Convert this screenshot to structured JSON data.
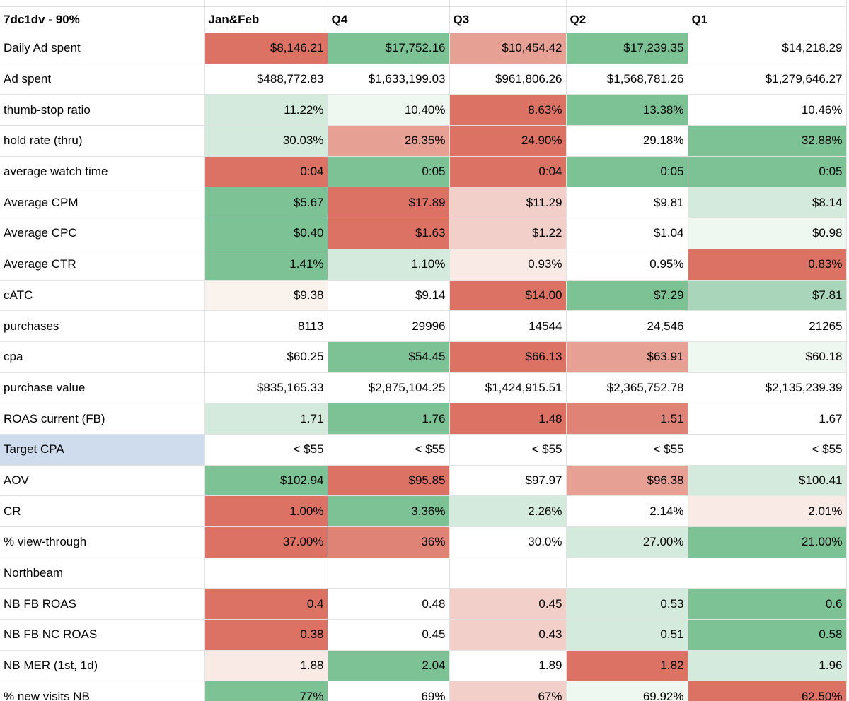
{
  "sheet": {
    "title_cell": "7dc1dv - 90%",
    "columns": [
      "Jan&Feb",
      "Q4",
      "Q3",
      "Q2",
      "Q1"
    ],
    "palette": {
      "red_strong": "#db7264",
      "red_medium": "#de8375",
      "red_light": "#e7a094",
      "red_pale": "#f2d0c9",
      "red_faint": "#f9eae6",
      "cream_faint": "#faf2ed",
      "white": "#ffffff",
      "green_faint": "#eff7f1",
      "green_light": "#d4eadd",
      "green_medium": "#a9d6ba",
      "green_strong": "#7dc295",
      "label_blue": "#cfdcee",
      "grid_line": "#e2e2e2"
    },
    "rows": [
      {
        "label": "Daily Ad spent",
        "label_bg": "white",
        "cells": [
          {
            "v": "$8,146.21",
            "c": "red_strong"
          },
          {
            "v": "$17,752.16",
            "c": "green_strong"
          },
          {
            "v": "$10,454.42",
            "c": "red_light"
          },
          {
            "v": "$17,239.35",
            "c": "green_strong"
          },
          {
            "v": "$14,218.29",
            "c": "white"
          }
        ]
      },
      {
        "label": "Ad spent",
        "label_bg": "white",
        "cells": [
          {
            "v": "$488,772.83",
            "c": "white"
          },
          {
            "v": "$1,633,199.03",
            "c": "white"
          },
          {
            "v": "$961,806.26",
            "c": "white"
          },
          {
            "v": "$1,568,781.26",
            "c": "white"
          },
          {
            "v": "$1,279,646.27",
            "c": "white"
          }
        ]
      },
      {
        "label": "thumb-stop ratio",
        "label_bg": "white",
        "cells": [
          {
            "v": "11.22%",
            "c": "green_light"
          },
          {
            "v": "10.40%",
            "c": "green_faint"
          },
          {
            "v": "8.63%",
            "c": "red_strong"
          },
          {
            "v": "13.38%",
            "c": "green_strong"
          },
          {
            "v": "10.46%",
            "c": "white"
          }
        ]
      },
      {
        "label": "hold rate (thru)",
        "label_bg": "white",
        "cells": [
          {
            "v": "30.03%",
            "c": "green_light"
          },
          {
            "v": "26.35%",
            "c": "red_light"
          },
          {
            "v": "24.90%",
            "c": "red_strong"
          },
          {
            "v": "29.18%",
            "c": "white"
          },
          {
            "v": "32.88%",
            "c": "green_strong"
          }
        ]
      },
      {
        "label": "average watch time",
        "label_bg": "white",
        "cells": [
          {
            "v": "0:04",
            "c": "red_strong"
          },
          {
            "v": "0:05",
            "c": "green_strong"
          },
          {
            "v": "0:04",
            "c": "red_strong"
          },
          {
            "v": "0:05",
            "c": "green_strong"
          },
          {
            "v": "0:05",
            "c": "green_strong"
          }
        ]
      },
      {
        "label": "Average CPM",
        "label_bg": "white",
        "cells": [
          {
            "v": "$5.67",
            "c": "green_strong"
          },
          {
            "v": "$17.89",
            "c": "red_strong"
          },
          {
            "v": "$11.29",
            "c": "red_pale"
          },
          {
            "v": "$9.81",
            "c": "white"
          },
          {
            "v": "$8.14",
            "c": "green_light"
          }
        ]
      },
      {
        "label": "Average CPC",
        "label_bg": "white",
        "cells": [
          {
            "v": "$0.40",
            "c": "green_strong"
          },
          {
            "v": "$1.63",
            "c": "red_strong"
          },
          {
            "v": "$1.22",
            "c": "red_pale"
          },
          {
            "v": "$1.04",
            "c": "white"
          },
          {
            "v": "$0.98",
            "c": "green_faint"
          }
        ]
      },
      {
        "label": "Average CTR",
        "label_bg": "white",
        "cells": [
          {
            "v": "1.41%",
            "c": "green_strong"
          },
          {
            "v": "1.10%",
            "c": "green_light"
          },
          {
            "v": "0.93%",
            "c": "red_faint"
          },
          {
            "v": "0.95%",
            "c": "white"
          },
          {
            "v": "0.83%",
            "c": "red_strong"
          }
        ]
      },
      {
        "label": "cATC",
        "label_bg": "white",
        "cells": [
          {
            "v": "$9.38",
            "c": "cream_faint"
          },
          {
            "v": "$9.14",
            "c": "white"
          },
          {
            "v": "$14.00",
            "c": "red_strong"
          },
          {
            "v": "$7.29",
            "c": "green_strong"
          },
          {
            "v": "$7.81",
            "c": "green_medium"
          }
        ]
      },
      {
        "label": "purchases",
        "label_bg": "white",
        "cells": [
          {
            "v": "8113",
            "c": "white"
          },
          {
            "v": "29996",
            "c": "white"
          },
          {
            "v": "14544",
            "c": "white"
          },
          {
            "v": "24,546",
            "c": "white"
          },
          {
            "v": "21265",
            "c": "white"
          }
        ]
      },
      {
        "label": "cpa",
        "label_bg": "white",
        "cells": [
          {
            "v": "$60.25",
            "c": "white"
          },
          {
            "v": "$54.45",
            "c": "green_strong"
          },
          {
            "v": "$66.13",
            "c": "red_strong"
          },
          {
            "v": "$63.91",
            "c": "red_light"
          },
          {
            "v": "$60.18",
            "c": "green_faint"
          }
        ]
      },
      {
        "label": "purchase value",
        "label_bg": "white",
        "cells": [
          {
            "v": "$835,165.33",
            "c": "white"
          },
          {
            "v": "$2,875,104.25",
            "c": "white"
          },
          {
            "v": "$1,424,915.51",
            "c": "white"
          },
          {
            "v": "$2,365,752.78",
            "c": "white"
          },
          {
            "v": "$2,135,239.39",
            "c": "white"
          }
        ]
      },
      {
        "label": "ROAS current (FB)",
        "label_bg": "white",
        "cells": [
          {
            "v": "1.71",
            "c": "green_light"
          },
          {
            "v": "1.76",
            "c": "green_strong"
          },
          {
            "v": "1.48",
            "c": "red_strong"
          },
          {
            "v": "1.51",
            "c": "red_medium"
          },
          {
            "v": "1.67",
            "c": "white"
          }
        ]
      },
      {
        "label": "Target CPA",
        "label_bg": "label_blue",
        "cells": [
          {
            "v": "< $55",
            "c": "white"
          },
          {
            "v": "< $55",
            "c": "white"
          },
          {
            "v": "< $55",
            "c": "white"
          },
          {
            "v": "< $55",
            "c": "white"
          },
          {
            "v": "< $55",
            "c": "white"
          }
        ]
      },
      {
        "label": "AOV",
        "label_bg": "white",
        "cells": [
          {
            "v": "$102.94",
            "c": "green_strong"
          },
          {
            "v": "$95.85",
            "c": "red_strong"
          },
          {
            "v": "$97.97",
            "c": "white"
          },
          {
            "v": "$96.38",
            "c": "red_light"
          },
          {
            "v": "$100.41",
            "c": "green_light"
          }
        ]
      },
      {
        "label": "CR",
        "label_bg": "white",
        "cells": [
          {
            "v": "1.00%",
            "c": "red_strong"
          },
          {
            "v": "3.36%",
            "c": "green_strong"
          },
          {
            "v": "2.26%",
            "c": "green_light"
          },
          {
            "v": "2.14%",
            "c": "white"
          },
          {
            "v": "2.01%",
            "c": "red_faint"
          }
        ]
      },
      {
        "label": "% view-through",
        "label_bg": "white",
        "cells": [
          {
            "v": "37.00%",
            "c": "red_strong"
          },
          {
            "v": "36%",
            "c": "red_medium"
          },
          {
            "v": "30.0%",
            "c": "white"
          },
          {
            "v": "27.00%",
            "c": "green_light"
          },
          {
            "v": "21.00%",
            "c": "green_strong"
          }
        ]
      },
      {
        "label": "Northbeam",
        "label_bg": "white",
        "cells": [
          {
            "v": "",
            "c": "white"
          },
          {
            "v": "",
            "c": "white"
          },
          {
            "v": "",
            "c": "white"
          },
          {
            "v": "",
            "c": "white"
          },
          {
            "v": "",
            "c": "white"
          }
        ]
      },
      {
        "label": "NB FB ROAS",
        "label_bg": "white",
        "cells": [
          {
            "v": "0.4",
            "c": "red_strong"
          },
          {
            "v": "0.48",
            "c": "white"
          },
          {
            "v": "0.45",
            "c": "red_pale"
          },
          {
            "v": "0.53",
            "c": "green_light"
          },
          {
            "v": "0.6",
            "c": "green_strong"
          }
        ]
      },
      {
        "label": "NB FB NC ROAS",
        "label_bg": "white",
        "cells": [
          {
            "v": "0.38",
            "c": "red_strong"
          },
          {
            "v": "0.45",
            "c": "white"
          },
          {
            "v": "0.43",
            "c": "red_pale"
          },
          {
            "v": "0.51",
            "c": "green_light"
          },
          {
            "v": "0.58",
            "c": "green_strong"
          }
        ]
      },
      {
        "label": "NB MER (1st, 1d)",
        "label_bg": "white",
        "cells": [
          {
            "v": "1.88",
            "c": "red_faint"
          },
          {
            "v": "2.04",
            "c": "green_strong"
          },
          {
            "v": "1.89",
            "c": "white"
          },
          {
            "v": "1.82",
            "c": "red_strong"
          },
          {
            "v": "1.96",
            "c": "green_light"
          }
        ]
      },
      {
        "label": "% new visits NB",
        "label_bg": "white",
        "cells": [
          {
            "v": "77%",
            "c": "green_strong"
          },
          {
            "v": "69%",
            "c": "white"
          },
          {
            "v": "67%",
            "c": "red_pale"
          },
          {
            "v": "69.92%",
            "c": "green_faint"
          },
          {
            "v": "62.50%",
            "c": "red_strong"
          }
        ]
      }
    ]
  }
}
